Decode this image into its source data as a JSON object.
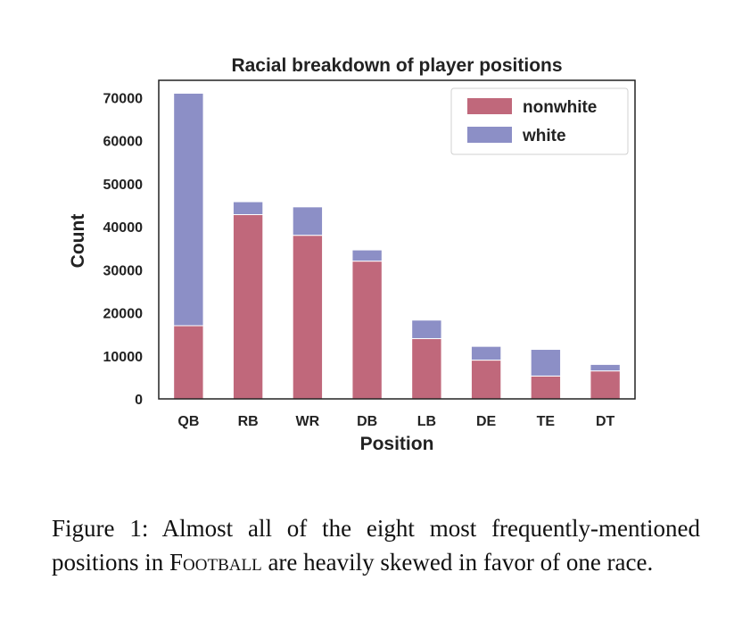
{
  "chart_data": {
    "type": "bar",
    "stacked": true,
    "title": "Racial breakdown of player positions",
    "xlabel": "Position",
    "ylabel": "Count",
    "categories": [
      "QB",
      "RB",
      "WR",
      "DB",
      "LB",
      "DE",
      "TE",
      "DT"
    ],
    "series": [
      {
        "name": "nonwhite",
        "color": "#c0687b",
        "values": [
          17000,
          42800,
          38000,
          32000,
          14000,
          9000,
          5300,
          6500
        ]
      },
      {
        "name": "white",
        "color": "#8c8fc6",
        "values": [
          54000,
          3000,
          6600,
          2600,
          4300,
          3200,
          6200,
          1500
        ]
      }
    ],
    "ylim": [
      0,
      74000
    ],
    "yticks": [
      0,
      10000,
      20000,
      30000,
      40000,
      50000,
      60000,
      70000
    ],
    "legend": "top-right",
    "grid": false
  },
  "caption": {
    "prefix": "Figure 1:  Almost all of the eight most frequently-mentioned positions in ",
    "smallcaps": "Football",
    "suffix": " are heavily skewed in favor of one race."
  }
}
